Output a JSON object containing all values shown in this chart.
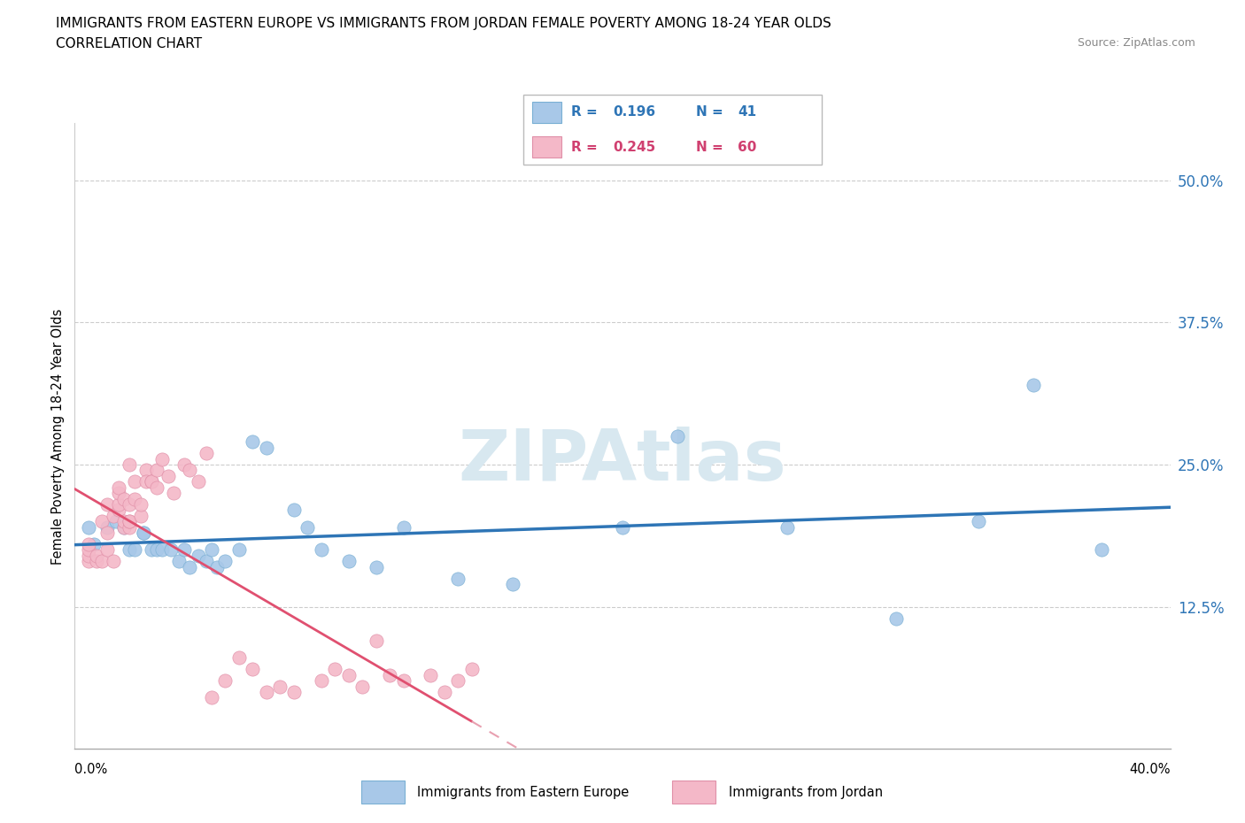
{
  "title_line1": "IMMIGRANTS FROM EASTERN EUROPE VS IMMIGRANTS FROM JORDAN FEMALE POVERTY AMONG 18-24 YEAR OLDS",
  "title_line2": "CORRELATION CHART",
  "source_text": "Source: ZipAtlas.com",
  "ylabel": "Female Poverty Among 18-24 Year Olds",
  "ytick_vals": [
    0.125,
    0.25,
    0.375,
    0.5
  ],
  "xlim": [
    0.0,
    0.4
  ],
  "ylim": [
    0.0,
    0.55
  ],
  "watermark": "ZIPAtlas",
  "color_eastern": "#a8c8e8",
  "color_eastern_line": "#2E75B6",
  "color_jordan": "#f4b8c8",
  "color_jordan_line": "#e05070",
  "color_jordan_line_ext": "#e8a0b0",
  "eastern_x": [
    0.005,
    0.007,
    0.012,
    0.015,
    0.018,
    0.02,
    0.022,
    0.025,
    0.025,
    0.028,
    0.03,
    0.032,
    0.035,
    0.038,
    0.04,
    0.042,
    0.045,
    0.048,
    0.05,
    0.052,
    0.055,
    0.06,
    0.065,
    0.07,
    0.08,
    0.085,
    0.09,
    0.1,
    0.11,
    0.12,
    0.14,
    0.16,
    0.2,
    0.22,
    0.26,
    0.3,
    0.33,
    0.35,
    0.375
  ],
  "eastern_y": [
    0.195,
    0.18,
    0.195,
    0.2,
    0.195,
    0.175,
    0.175,
    0.19,
    0.19,
    0.175,
    0.175,
    0.175,
    0.175,
    0.165,
    0.175,
    0.16,
    0.17,
    0.165,
    0.175,
    0.16,
    0.165,
    0.175,
    0.27,
    0.265,
    0.21,
    0.195,
    0.175,
    0.165,
    0.16,
    0.195,
    0.15,
    0.145,
    0.195,
    0.275,
    0.195,
    0.115,
    0.2,
    0.32,
    0.175
  ],
  "jordan_x": [
    0.005,
    0.005,
    0.005,
    0.005,
    0.008,
    0.008,
    0.01,
    0.01,
    0.012,
    0.012,
    0.012,
    0.014,
    0.014,
    0.016,
    0.016,
    0.016,
    0.016,
    0.018,
    0.018,
    0.018,
    0.02,
    0.02,
    0.02,
    0.02,
    0.02,
    0.022,
    0.022,
    0.024,
    0.024,
    0.026,
    0.026,
    0.028,
    0.028,
    0.03,
    0.03,
    0.032,
    0.034,
    0.036,
    0.04,
    0.042,
    0.045,
    0.048,
    0.05,
    0.055,
    0.06,
    0.065,
    0.07,
    0.075,
    0.08,
    0.09,
    0.095,
    0.1,
    0.105,
    0.11,
    0.115,
    0.12,
    0.13,
    0.135,
    0.14,
    0.145
  ],
  "jordan_y": [
    0.165,
    0.17,
    0.175,
    0.18,
    0.165,
    0.17,
    0.165,
    0.2,
    0.175,
    0.19,
    0.215,
    0.165,
    0.205,
    0.21,
    0.215,
    0.225,
    0.23,
    0.195,
    0.2,
    0.22,
    0.195,
    0.2,
    0.2,
    0.215,
    0.25,
    0.22,
    0.235,
    0.205,
    0.215,
    0.245,
    0.235,
    0.235,
    0.235,
    0.23,
    0.245,
    0.255,
    0.24,
    0.225,
    0.25,
    0.245,
    0.235,
    0.26,
    0.045,
    0.06,
    0.08,
    0.07,
    0.05,
    0.055,
    0.05,
    0.06,
    0.07,
    0.065,
    0.055,
    0.095,
    0.065,
    0.06,
    0.065,
    0.05,
    0.06,
    0.07
  ]
}
